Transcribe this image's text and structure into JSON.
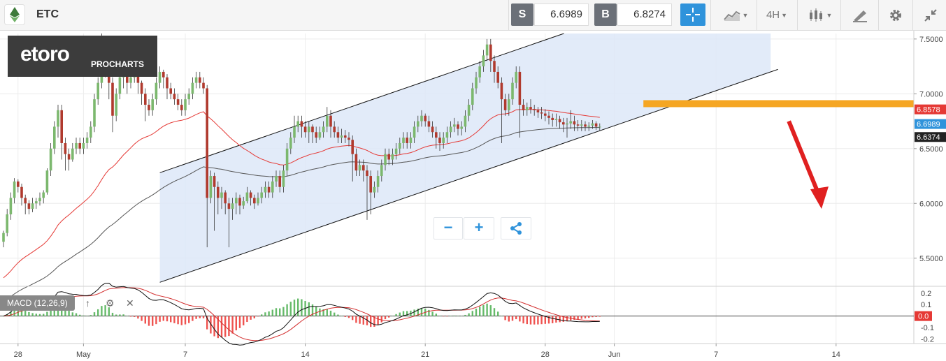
{
  "toolbar": {
    "asset": "ETC",
    "sell_label": "S",
    "sell_value": "6.6989",
    "buy_label": "B",
    "buy_value": "6.8274",
    "timeframe": "4H"
  },
  "logo": {
    "name": "etoro",
    "sub": "PROCHARTS"
  },
  "macd_label": "MACD (12,26,9)",
  "chart_data": {
    "type": "candlestick",
    "price_axis": {
      "min": 5.25,
      "max": 7.55,
      "ticks": [
        "7.5000",
        "7.0000",
        "6.5000",
        "6.0000",
        "5.5000"
      ],
      "tick_values": [
        7.5,
        7.0,
        6.5,
        6.0,
        5.5
      ]
    },
    "price_tags": [
      {
        "text": "6.8578",
        "value": 6.8578,
        "color": "#e53935"
      },
      {
        "text": "6.6989",
        "value": 6.6989,
        "color": "#2f93db"
      },
      {
        "text": "6.6374",
        "value": 6.6374,
        "color": "#222222"
      }
    ],
    "macd_axis": {
      "min": -0.24,
      "max": 0.26,
      "ticks": [
        "0.2",
        "0.1",
        "0.0",
        "-0.1",
        "-0.2"
      ],
      "tick_values": [
        0.2,
        0.1,
        0.0,
        -0.1,
        -0.2
      ],
      "zero_tag": "0.0"
    },
    "x_axis": {
      "ticks": [
        {
          "label": "28",
          "i": 4
        },
        {
          "label": "May",
          "i": 22
        },
        {
          "label": "7",
          "i": 50
        },
        {
          "label": "14",
          "i": 83
        },
        {
          "label": "21",
          "i": 116
        },
        {
          "label": "28",
          "i": 149
        },
        {
          "label": "Jun",
          "i": 168
        },
        {
          "label": "7",
          "i": 196
        },
        {
          "label": "14",
          "i": 229
        }
      ]
    },
    "channel": {
      "start_index": 43,
      "end_index": 176,
      "lower": [
        5.28,
        6.8
      ],
      "upper": [
        6.28,
        7.8
      ],
      "fill_until_index": 211
    },
    "resistance": {
      "level": 6.91,
      "from_index": 176,
      "to_index": 239
    },
    "forecast_arrow": {
      "from": [
        216,
        6.75
      ],
      "to": [
        225,
        5.95
      ]
    },
    "candles": [
      [
        5.65,
        5.73,
        5.6,
        5.75
      ],
      [
        5.73,
        5.9,
        5.7,
        5.95
      ],
      [
        5.9,
        6.05,
        5.85,
        6.1
      ],
      [
        6.05,
        6.2,
        6.0,
        6.23
      ],
      [
        6.2,
        6.15,
        6.1,
        6.22
      ],
      [
        6.15,
        6.05,
        5.98,
        6.18
      ],
      [
        6.05,
        6.0,
        5.9,
        6.08
      ],
      [
        6.0,
        5.95,
        5.9,
        6.03
      ],
      [
        5.95,
        6.0,
        5.92,
        6.05
      ],
      [
        6.0,
        6.02,
        5.95,
        6.05
      ],
      [
        6.02,
        6.05,
        5.98,
        6.1
      ],
      [
        6.05,
        6.1,
        6.0,
        6.12
      ],
      [
        6.1,
        6.3,
        6.08,
        6.32
      ],
      [
        6.3,
        6.5,
        6.25,
        6.55
      ],
      [
        6.5,
        6.7,
        6.45,
        6.75
      ],
      [
        6.7,
        6.85,
        6.6,
        6.9
      ],
      [
        6.85,
        6.55,
        6.4,
        6.9
      ],
      [
        6.55,
        6.45,
        6.3,
        6.6
      ],
      [
        6.45,
        6.4,
        6.3,
        6.5
      ],
      [
        6.4,
        6.5,
        6.38,
        6.55
      ],
      [
        6.5,
        6.55,
        6.45,
        6.6
      ],
      [
        6.55,
        6.5,
        6.45,
        6.6
      ],
      [
        6.5,
        6.55,
        6.45,
        6.6
      ],
      [
        6.55,
        6.6,
        6.5,
        6.65
      ],
      [
        6.6,
        6.7,
        6.55,
        6.75
      ],
      [
        6.7,
        6.95,
        6.65,
        7.0
      ],
      [
        6.95,
        7.1,
        6.9,
        7.15
      ],
      [
        7.1,
        7.3,
        7.05,
        7.55
      ],
      [
        7.3,
        7.25,
        7.15,
        7.35
      ],
      [
        7.25,
        7.1,
        6.95,
        7.3
      ],
      [
        7.1,
        6.8,
        6.65,
        7.15
      ],
      [
        6.8,
        7.0,
        6.75,
        7.05
      ],
      [
        7.0,
        7.15,
        6.95,
        7.2
      ],
      [
        7.15,
        7.2,
        7.05,
        7.25
      ],
      [
        7.2,
        7.1,
        7.0,
        7.22
      ],
      [
        7.1,
        7.15,
        7.05,
        7.2
      ],
      [
        7.15,
        7.2,
        7.1,
        7.25
      ],
      [
        7.2,
        7.1,
        7.0,
        7.22
      ],
      [
        7.1,
        7.0,
        6.9,
        7.12
      ],
      [
        7.0,
        6.9,
        6.75,
        7.05
      ],
      [
        6.9,
        6.85,
        6.8,
        6.95
      ],
      [
        6.85,
        6.95,
        6.8,
        7.0
      ],
      [
        6.95,
        7.1,
        6.9,
        7.15
      ],
      [
        7.1,
        7.2,
        7.05,
        7.25
      ],
      [
        7.2,
        7.15,
        7.05,
        7.22
      ],
      [
        7.15,
        7.05,
        6.95,
        7.18
      ],
      [
        7.05,
        7.0,
        6.95,
        7.1
      ],
      [
        7.0,
        6.95,
        6.9,
        7.05
      ],
      [
        6.95,
        6.9,
        6.85,
        7.0
      ],
      [
        6.9,
        6.85,
        6.8,
        6.95
      ],
      [
        6.85,
        6.95,
        6.8,
        7.0
      ],
      [
        6.95,
        7.0,
        6.9,
        7.05
      ],
      [
        7.0,
        7.1,
        6.95,
        7.15
      ],
      [
        7.1,
        7.15,
        7.05,
        7.2
      ],
      [
        7.15,
        7.1,
        7.05,
        7.2
      ],
      [
        7.1,
        7.05,
        7.0,
        7.15
      ],
      [
        7.05,
        6.05,
        5.6,
        7.08
      ],
      [
        6.05,
        6.25,
        6.0,
        6.3
      ],
      [
        6.25,
        6.15,
        5.75,
        6.28
      ],
      [
        6.15,
        6.05,
        5.9,
        6.2
      ],
      [
        6.05,
        6.1,
        5.95,
        6.15
      ],
      [
        6.1,
        6.0,
        5.9,
        6.12
      ],
      [
        6.0,
        5.95,
        5.6,
        6.05
      ],
      [
        5.95,
        6.0,
        5.85,
        6.05
      ],
      [
        6.0,
        6.05,
        5.9,
        6.1
      ],
      [
        6.05,
        5.98,
        5.9,
        6.08
      ],
      [
        5.98,
        6.02,
        5.95,
        6.06
      ],
      [
        6.02,
        6.1,
        6.0,
        6.15
      ],
      [
        6.1,
        6.05,
        5.98,
        6.12
      ],
      [
        6.05,
        6.0,
        5.95,
        6.08
      ],
      [
        6.0,
        6.05,
        5.98,
        6.1
      ],
      [
        6.05,
        6.1,
        6.0,
        6.15
      ],
      [
        6.1,
        6.15,
        6.05,
        6.2
      ],
      [
        6.15,
        6.1,
        6.05,
        6.2
      ],
      [
        6.1,
        6.2,
        6.05,
        6.25
      ],
      [
        6.2,
        6.25,
        6.15,
        6.3
      ],
      [
        6.25,
        6.15,
        6.1,
        6.3
      ],
      [
        6.15,
        6.3,
        6.1,
        6.35
      ],
      [
        6.3,
        6.5,
        6.25,
        6.55
      ],
      [
        6.5,
        6.6,
        6.45,
        6.65
      ],
      [
        6.6,
        6.7,
        6.55,
        6.8
      ],
      [
        6.7,
        6.75,
        6.65,
        6.8
      ],
      [
        6.75,
        6.7,
        6.6,
        6.8
      ],
      [
        6.7,
        6.65,
        6.6,
        6.75
      ],
      [
        6.65,
        6.7,
        6.55,
        6.75
      ],
      [
        6.7,
        6.65,
        6.55,
        6.72
      ],
      [
        6.65,
        6.6,
        6.55,
        6.7
      ],
      [
        6.6,
        6.65,
        6.58,
        6.7
      ],
      [
        6.65,
        6.7,
        6.6,
        6.75
      ],
      [
        6.7,
        6.8,
        6.65,
        6.88
      ],
      [
        6.8,
        6.7,
        6.6,
        6.85
      ],
      [
        6.7,
        6.65,
        6.6,
        6.75
      ],
      [
        6.65,
        6.6,
        6.55,
        6.7
      ],
      [
        6.6,
        6.62,
        6.55,
        6.68
      ],
      [
        6.62,
        6.6,
        6.55,
        6.67
      ],
      [
        6.6,
        6.58,
        6.52,
        6.65
      ],
      [
        6.58,
        6.45,
        6.2,
        6.62
      ],
      [
        6.45,
        6.3,
        6.25,
        6.5
      ],
      [
        6.3,
        6.35,
        6.25,
        6.4
      ],
      [
        6.35,
        6.3,
        6.2,
        6.4
      ],
      [
        6.3,
        6.25,
        5.85,
        6.35
      ],
      [
        6.25,
        6.1,
        5.9,
        6.3
      ],
      [
        6.1,
        6.15,
        6.05,
        6.2
      ],
      [
        6.15,
        6.25,
        6.1,
        6.3
      ],
      [
        6.25,
        6.35,
        6.2,
        6.4
      ],
      [
        6.35,
        6.45,
        6.3,
        6.5
      ],
      [
        6.45,
        6.4,
        6.35,
        6.5
      ],
      [
        6.4,
        6.45,
        6.35,
        6.5
      ],
      [
        6.45,
        6.5,
        6.4,
        6.55
      ],
      [
        6.5,
        6.55,
        6.45,
        6.6
      ],
      [
        6.55,
        6.6,
        6.5,
        6.65
      ],
      [
        6.6,
        6.55,
        6.5,
        6.65
      ],
      [
        6.55,
        6.6,
        6.5,
        6.65
      ],
      [
        6.6,
        6.7,
        6.55,
        6.75
      ],
      [
        6.7,
        6.75,
        6.65,
        6.8
      ],
      [
        6.75,
        6.8,
        6.7,
        6.85
      ],
      [
        6.8,
        6.75,
        6.7,
        6.82
      ],
      [
        6.75,
        6.7,
        6.65,
        6.8
      ],
      [
        6.7,
        6.65,
        6.6,
        6.75
      ],
      [
        6.65,
        6.6,
        6.5,
        6.7
      ],
      [
        6.6,
        6.55,
        6.48,
        6.65
      ],
      [
        6.55,
        6.6,
        6.5,
        6.65
      ],
      [
        6.6,
        6.65,
        6.55,
        6.7
      ],
      [
        6.65,
        6.7,
        6.6,
        6.75
      ],
      [
        6.7,
        6.72,
        6.65,
        6.78
      ],
      [
        6.72,
        6.68,
        6.62,
        6.75
      ],
      [
        6.68,
        6.7,
        6.62,
        6.75
      ],
      [
        6.7,
        6.8,
        6.65,
        6.85
      ],
      [
        6.8,
        6.9,
        6.75,
        6.95
      ],
      [
        6.9,
        7.05,
        6.85,
        7.1
      ],
      [
        7.05,
        7.15,
        7.0,
        7.2
      ],
      [
        7.15,
        7.25,
        7.1,
        7.3
      ],
      [
        7.25,
        7.35,
        7.2,
        7.4
      ],
      [
        7.35,
        7.45,
        7.3,
        7.5
      ],
      [
        7.45,
        7.3,
        7.2,
        7.5
      ],
      [
        7.3,
        7.2,
        7.1,
        7.35
      ],
      [
        7.2,
        7.1,
        7.05,
        7.25
      ],
      [
        7.1,
        6.95,
        6.55,
        7.15
      ],
      [
        6.95,
        6.85,
        6.8,
        7.0
      ],
      [
        6.85,
        6.95,
        6.8,
        7.0
      ],
      [
        6.95,
        7.1,
        6.9,
        7.15
      ],
      [
        7.1,
        7.2,
        7.05,
        7.25
      ],
      [
        7.2,
        6.9,
        6.6,
        7.25
      ],
      [
        6.9,
        6.85,
        6.8,
        6.95
      ],
      [
        6.85,
        6.88,
        6.8,
        6.92
      ],
      [
        6.88,
        6.86,
        6.82,
        6.95
      ],
      [
        6.86,
        6.85,
        6.8,
        6.9
      ],
      [
        6.85,
        6.83,
        6.78,
        6.88
      ],
      [
        6.83,
        6.82,
        6.77,
        6.88
      ],
      [
        6.82,
        6.8,
        6.75,
        6.86
      ],
      [
        6.8,
        6.78,
        6.72,
        6.84
      ],
      [
        6.78,
        6.76,
        6.7,
        6.82
      ],
      [
        6.76,
        6.77,
        6.7,
        6.82
      ],
      [
        6.77,
        6.74,
        6.68,
        6.8
      ],
      [
        6.74,
        6.72,
        6.65,
        6.78
      ],
      [
        6.72,
        6.73,
        6.6,
        6.78
      ],
      [
        6.73,
        6.75,
        6.68,
        6.85
      ],
      [
        6.75,
        6.72,
        6.66,
        6.8
      ],
      [
        6.72,
        6.71,
        6.66,
        6.76
      ],
      [
        6.71,
        6.72,
        6.66,
        6.76
      ],
      [
        6.72,
        6.7,
        6.66,
        6.75
      ],
      [
        6.7,
        6.71,
        6.66,
        6.74
      ],
      [
        6.71,
        6.73,
        6.68,
        6.76
      ],
      [
        6.73,
        6.7,
        6.67,
        6.75
      ],
      [
        6.7,
        6.7,
        6.66,
        6.73
      ]
    ],
    "series": [
      {
        "name": "",
        "color": "#e53935",
        "values": []
      },
      {
        "name": "",
        "color": "#555555",
        "values": []
      }
    ],
    "macd": {
      "hist_positive_color": "#66bb6a",
      "hist_negative_color": "#ef5350"
    }
  }
}
